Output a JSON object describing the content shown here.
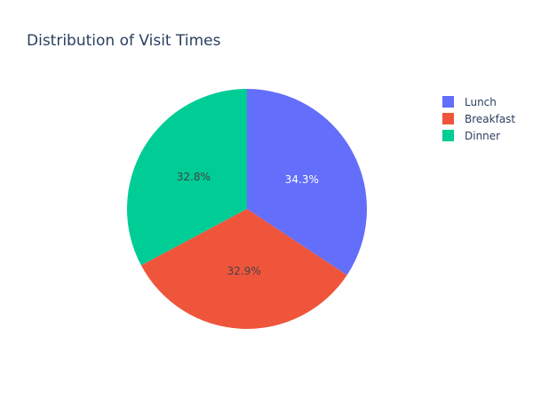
{
  "chart_data": {
    "type": "pie",
    "title": "Distribution of Visit Times",
    "categories": [
      "Lunch",
      "Breakfast",
      "Dinner"
    ],
    "values": [
      34.3,
      32.9,
      32.8
    ],
    "labels": [
      "34.3%",
      "32.9%",
      "32.8%"
    ],
    "colors": [
      "#636efa",
      "#ef553b",
      "#00cc96"
    ],
    "label_colors": [
      "#ffffff",
      "#444444",
      "#444444"
    ],
    "direction": "clockwise",
    "start_angle": "top",
    "legend": {
      "position": "top-right",
      "items": [
        "Lunch",
        "Breakfast",
        "Dinner"
      ]
    }
  }
}
